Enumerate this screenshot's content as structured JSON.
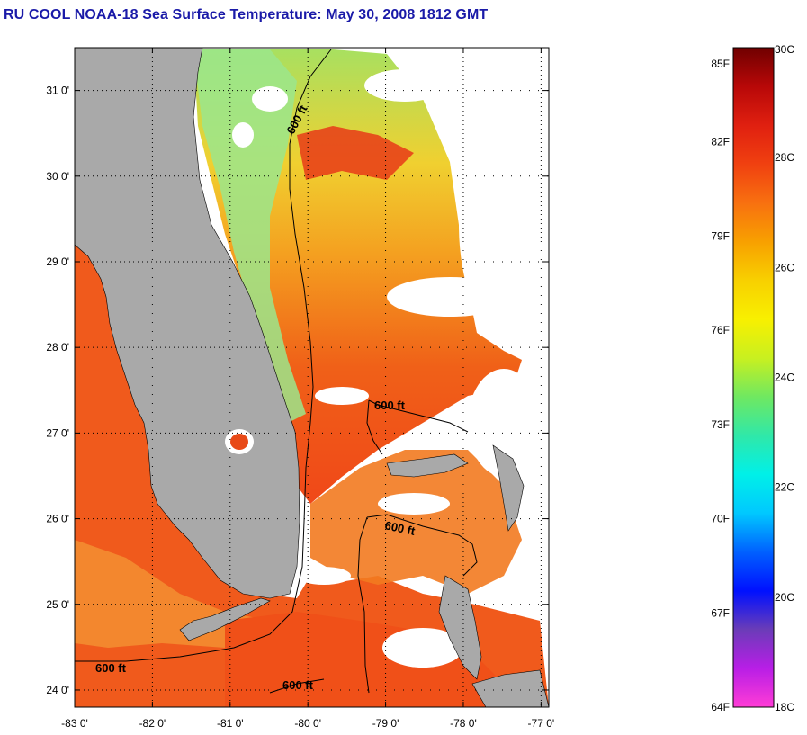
{
  "title": "RU COOL  NOAA-18  Sea Surface Temperature:  May 30, 2008 1812 GMT",
  "map": {
    "lon_range": [
      -83.0,
      -76.9
    ],
    "lat_range": [
      23.8,
      31.5
    ],
    "lat_ticks": [
      {
        "value": 31,
        "label": "31 0'"
      },
      {
        "value": 30,
        "label": "30 0'"
      },
      {
        "value": 29,
        "label": "29 0'"
      },
      {
        "value": 28,
        "label": "28 0'"
      },
      {
        "value": 27,
        "label": "27 0'"
      },
      {
        "value": 26,
        "label": "26 0'"
      },
      {
        "value": 25,
        "label": "25 0'"
      },
      {
        "value": 24,
        "label": "24 0'"
      }
    ],
    "lon_ticks": [
      {
        "value": -83,
        "label": "-83 0'"
      },
      {
        "value": -82,
        "label": "-82 0'"
      },
      {
        "value": -81,
        "label": "-81 0'"
      },
      {
        "value": -80,
        "label": "-80 0'"
      },
      {
        "value": -79,
        "label": "-79 0'"
      },
      {
        "value": -78,
        "label": "-78 0'"
      },
      {
        "value": -77,
        "label": "-77 0'"
      }
    ],
    "contour_label": "600 ft",
    "grid": "dotted",
    "colors": {
      "land": "#a9a9a9",
      "no_data": "#ffffff",
      "warm_water": "#f05018",
      "mid_water": "#f0c020",
      "cool_water": "#8ee08a"
    }
  },
  "colorbar": {
    "range_c": [
      18,
      30
    ],
    "celsius_labels": [
      "30C",
      "28C",
      "26C",
      "24C",
      "22C",
      "20C",
      "18C"
    ],
    "fahrenheit_labels": [
      "85F",
      "82F",
      "79F",
      "76F",
      "73F",
      "70F",
      "67F",
      "64F"
    ],
    "gradient_stops": [
      "#ff3cd6",
      "#b81ee6",
      "#6a3cb8",
      "#0010ff",
      "#0060ff",
      "#00c8ff",
      "#00f0e8",
      "#30e8a8",
      "#70e860",
      "#c8f020",
      "#f8f000",
      "#f8d000",
      "#f8a000",
      "#f87010",
      "#f04010",
      "#e02010",
      "#b80808",
      "#700000"
    ]
  }
}
